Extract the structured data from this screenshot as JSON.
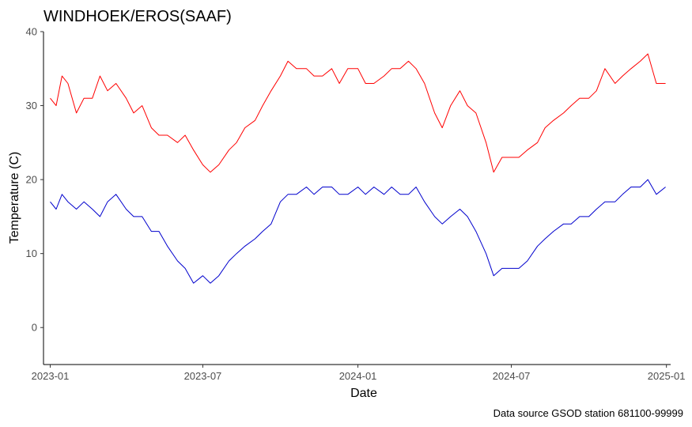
{
  "chart_data": {
    "type": "line",
    "title": "WINDHOEK/EROS(SAAF)",
    "xlabel": "Date",
    "ylabel": "Temperature (C)",
    "caption": "Data source GSOD station 681100-99999",
    "x_ticks": [
      "2023-01",
      "2023-07",
      "2024-01",
      "2024-07",
      "2025-01"
    ],
    "y_ticks": [
      0,
      10,
      20,
      30,
      40
    ],
    "xlim": [
      "2022-12-24",
      "2025-01-06"
    ],
    "ylim": [
      -5,
      40
    ],
    "grid": false,
    "legend": "none",
    "series": [
      {
        "color": "#ff0000",
        "points": [
          [
            "2023-01-01",
            31
          ],
          [
            "2023-01-08",
            30
          ],
          [
            "2023-01-15",
            34
          ],
          [
            "2023-01-22",
            33
          ],
          [
            "2023-02-01",
            29
          ],
          [
            "2023-02-10",
            31
          ],
          [
            "2023-02-20",
            31
          ],
          [
            "2023-03-01",
            34
          ],
          [
            "2023-03-10",
            32
          ],
          [
            "2023-03-20",
            33
          ],
          [
            "2023-04-01",
            31
          ],
          [
            "2023-04-10",
            29
          ],
          [
            "2023-04-20",
            30
          ],
          [
            "2023-05-01",
            27
          ],
          [
            "2023-05-10",
            26
          ],
          [
            "2023-05-20",
            26
          ],
          [
            "2023-06-01",
            25
          ],
          [
            "2023-06-10",
            26
          ],
          [
            "2023-06-20",
            24
          ],
          [
            "2023-07-01",
            22
          ],
          [
            "2023-07-10",
            21
          ],
          [
            "2023-07-20",
            22
          ],
          [
            "2023-08-01",
            24
          ],
          [
            "2023-08-10",
            25
          ],
          [
            "2023-08-20",
            27
          ],
          [
            "2023-09-01",
            28
          ],
          [
            "2023-09-10",
            30
          ],
          [
            "2023-09-20",
            32
          ],
          [
            "2023-10-01",
            34
          ],
          [
            "2023-10-10",
            36
          ],
          [
            "2023-10-20",
            35
          ],
          [
            "2023-11-01",
            35
          ],
          [
            "2023-11-10",
            34
          ],
          [
            "2023-11-20",
            34
          ],
          [
            "2023-12-01",
            35
          ],
          [
            "2023-12-10",
            33
          ],
          [
            "2023-12-20",
            35
          ],
          [
            "2024-01-01",
            35
          ],
          [
            "2024-01-10",
            33
          ],
          [
            "2024-01-20",
            33
          ],
          [
            "2024-02-01",
            34
          ],
          [
            "2024-02-10",
            35
          ],
          [
            "2024-02-20",
            35
          ],
          [
            "2024-03-01",
            36
          ],
          [
            "2024-03-10",
            35
          ],
          [
            "2024-03-20",
            33
          ],
          [
            "2024-04-01",
            29
          ],
          [
            "2024-04-10",
            27
          ],
          [
            "2024-04-20",
            30
          ],
          [
            "2024-05-01",
            32
          ],
          [
            "2024-05-10",
            30
          ],
          [
            "2024-05-20",
            29
          ],
          [
            "2024-06-01",
            25
          ],
          [
            "2024-06-10",
            21
          ],
          [
            "2024-06-20",
            23
          ],
          [
            "2024-07-01",
            23
          ],
          [
            "2024-07-10",
            23
          ],
          [
            "2024-07-20",
            24
          ],
          [
            "2024-08-01",
            25
          ],
          [
            "2024-08-10",
            27
          ],
          [
            "2024-08-20",
            28
          ],
          [
            "2024-09-01",
            29
          ],
          [
            "2024-09-10",
            30
          ],
          [
            "2024-09-20",
            31
          ],
          [
            "2024-10-01",
            31
          ],
          [
            "2024-10-10",
            32
          ],
          [
            "2024-10-20",
            35
          ],
          [
            "2024-11-01",
            33
          ],
          [
            "2024-11-10",
            34
          ],
          [
            "2024-11-20",
            35
          ],
          [
            "2024-12-01",
            36
          ],
          [
            "2024-12-10",
            37
          ],
          [
            "2024-12-20",
            33
          ],
          [
            "2024-12-31",
            33
          ]
        ]
      },
      {
        "color": "#0000cd",
        "points": [
          [
            "2023-01-01",
            17
          ],
          [
            "2023-01-08",
            16
          ],
          [
            "2023-01-15",
            18
          ],
          [
            "2023-01-22",
            17
          ],
          [
            "2023-02-01",
            16
          ],
          [
            "2023-02-10",
            17
          ],
          [
            "2023-02-20",
            16
          ],
          [
            "2023-03-01",
            15
          ],
          [
            "2023-03-10",
            17
          ],
          [
            "2023-03-20",
            18
          ],
          [
            "2023-04-01",
            16
          ],
          [
            "2023-04-10",
            15
          ],
          [
            "2023-04-20",
            15
          ],
          [
            "2023-05-01",
            13
          ],
          [
            "2023-05-10",
            13
          ],
          [
            "2023-05-20",
            11
          ],
          [
            "2023-06-01",
            9
          ],
          [
            "2023-06-10",
            8
          ],
          [
            "2023-06-20",
            6
          ],
          [
            "2023-07-01",
            7
          ],
          [
            "2023-07-10",
            6
          ],
          [
            "2023-07-20",
            7
          ],
          [
            "2023-08-01",
            9
          ],
          [
            "2023-08-10",
            10
          ],
          [
            "2023-08-20",
            11
          ],
          [
            "2023-09-01",
            12
          ],
          [
            "2023-09-10",
            13
          ],
          [
            "2023-09-20",
            14
          ],
          [
            "2023-10-01",
            17
          ],
          [
            "2023-10-10",
            18
          ],
          [
            "2023-10-20",
            18
          ],
          [
            "2023-11-01",
            19
          ],
          [
            "2023-11-10",
            18
          ],
          [
            "2023-11-20",
            19
          ],
          [
            "2023-12-01",
            19
          ],
          [
            "2023-12-10",
            18
          ],
          [
            "2023-12-20",
            18
          ],
          [
            "2024-01-01",
            19
          ],
          [
            "2024-01-10",
            18
          ],
          [
            "2024-01-20",
            19
          ],
          [
            "2024-02-01",
            18
          ],
          [
            "2024-02-10",
            19
          ],
          [
            "2024-02-20",
            18
          ],
          [
            "2024-03-01",
            18
          ],
          [
            "2024-03-10",
            19
          ],
          [
            "2024-03-20",
            17
          ],
          [
            "2024-04-01",
            15
          ],
          [
            "2024-04-10",
            14
          ],
          [
            "2024-04-20",
            15
          ],
          [
            "2024-05-01",
            16
          ],
          [
            "2024-05-10",
            15
          ],
          [
            "2024-05-20",
            13
          ],
          [
            "2024-06-01",
            10
          ],
          [
            "2024-06-10",
            7
          ],
          [
            "2024-06-20",
            8
          ],
          [
            "2024-07-01",
            8
          ],
          [
            "2024-07-10",
            8
          ],
          [
            "2024-07-20",
            9
          ],
          [
            "2024-08-01",
            11
          ],
          [
            "2024-08-10",
            12
          ],
          [
            "2024-08-20",
            13
          ],
          [
            "2024-09-01",
            14
          ],
          [
            "2024-09-10",
            14
          ],
          [
            "2024-09-20",
            15
          ],
          [
            "2024-10-01",
            15
          ],
          [
            "2024-10-10",
            16
          ],
          [
            "2024-10-20",
            17
          ],
          [
            "2024-11-01",
            17
          ],
          [
            "2024-11-10",
            18
          ],
          [
            "2024-11-20",
            19
          ],
          [
            "2024-12-01",
            19
          ],
          [
            "2024-12-10",
            20
          ],
          [
            "2024-12-20",
            18
          ],
          [
            "2024-12-31",
            19
          ]
        ]
      }
    ]
  }
}
